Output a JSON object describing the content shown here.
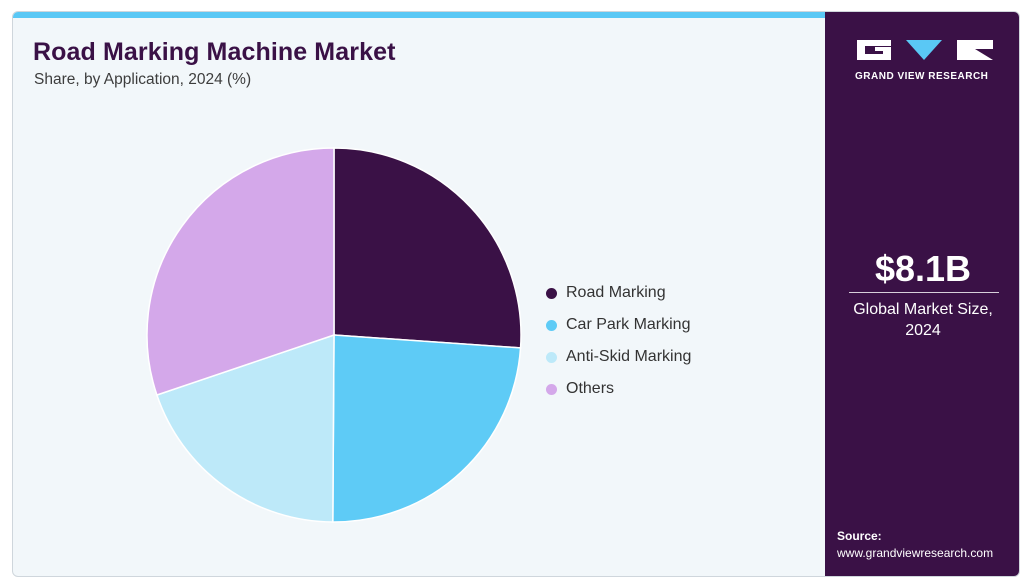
{
  "header": {
    "title": "Road Marking Machine Market",
    "subtitle": "Share, by Application, 2024 (%)"
  },
  "brand": {
    "name": "GRAND VIEW RESEARCH"
  },
  "sidebar": {
    "market_value": "$8.1B",
    "market_label": "Global Market Size, 2024",
    "source_label": "Source:",
    "source_url": "www.grandviewresearch.com"
  },
  "colors": {
    "accent": "#5ac8f5",
    "sidebar_bg": "#3a1146",
    "panel_bg": "#f2f7fa"
  },
  "chart_data": {
    "type": "pie",
    "title": "Road Marking Machine Market",
    "subtitle": "Share, by Application, 2024 (%)",
    "legend_position": "right",
    "slices": [
      {
        "label": "Road Marking",
        "value": 26.1,
        "color": "#3a1146"
      },
      {
        "label": "Car Park Marking",
        "value": 24.0,
        "color": "#5ecbf6"
      },
      {
        "label": "Anti-Skid Marking",
        "value": 19.7,
        "color": "#bde9f9"
      },
      {
        "label": "Others",
        "value": 30.2,
        "color": "#d4a8ea"
      }
    ]
  }
}
